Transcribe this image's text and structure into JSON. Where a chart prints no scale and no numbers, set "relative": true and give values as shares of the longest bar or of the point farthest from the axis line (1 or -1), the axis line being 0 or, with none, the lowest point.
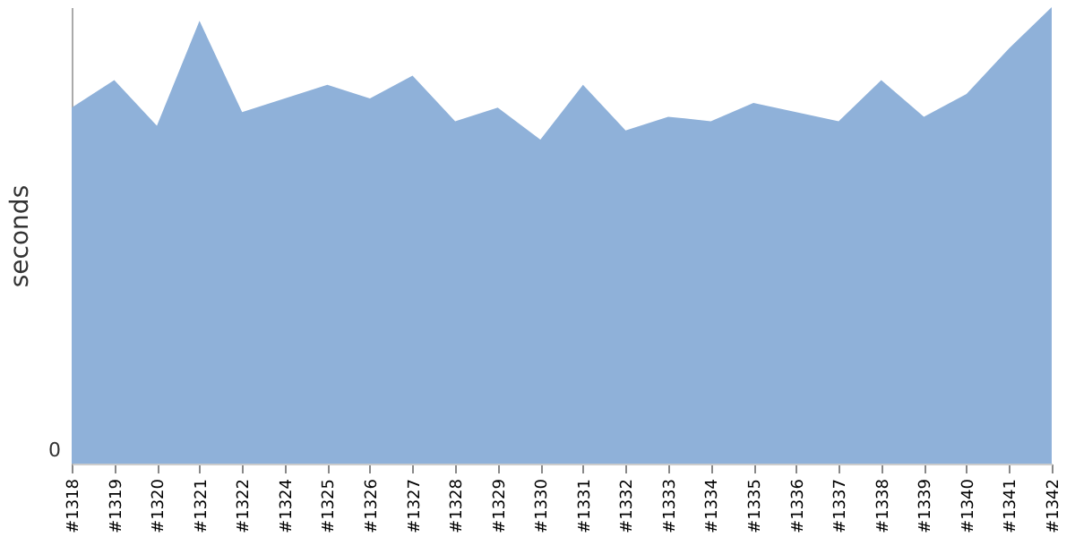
{
  "chart_data": {
    "type": "area",
    "relative": true,
    "ylabel": "seconds",
    "annotations": [
      "0"
    ],
    "categories": [
      "#1318",
      "#1319",
      "#1320",
      "#1321",
      "#1322",
      "#1324",
      "#1325",
      "#1326",
      "#1327",
      "#1328",
      "#1329",
      "#1330",
      "#1331",
      "#1332",
      "#1333",
      "#1334",
      "#1335",
      "#1336",
      "#1337",
      "#1338",
      "#1339",
      "#1340",
      "#1341",
      "#1342"
    ],
    "series": [
      {
        "color": "#8fb1d9",
        "values": [
          0.78,
          0.84,
          0.74,
          0.97,
          0.77,
          0.8,
          0.83,
          0.8,
          0.85,
          0.75,
          0.78,
          0.71,
          0.83,
          0.73,
          0.76,
          0.75,
          0.79,
          0.77,
          0.75,
          0.84,
          0.76,
          0.81,
          0.91,
          1
        ]
      }
    ],
    "grid": false
  }
}
